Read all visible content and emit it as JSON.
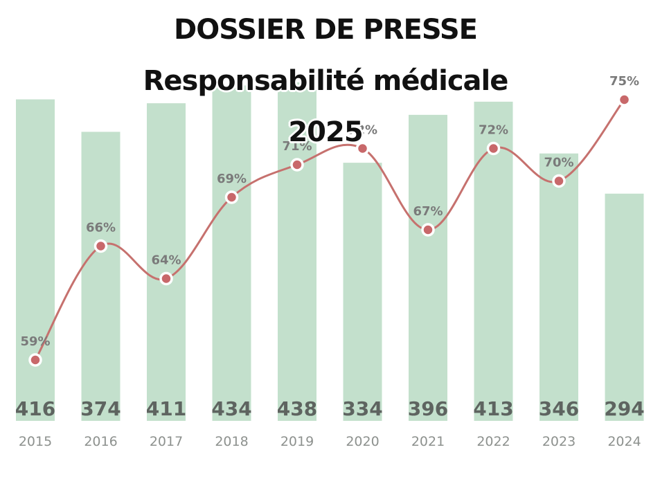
{
  "header": {
    "title_line1": "DOSSIER DE PRESSE",
    "title_line2": "Responsabilité médicale",
    "title_line3": "2025"
  },
  "colors": {
    "bar": "#c3e0cc",
    "line": "#c6716e",
    "point": "#c8686a",
    "bar_label": "#5e6460",
    "year_label": "#8d918e"
  },
  "chart_data": {
    "type": "bar",
    "title": "DOSSIER DE PRESSE Responsabilité médicale 2025",
    "categories": [
      "2015",
      "2016",
      "2017",
      "2018",
      "2019",
      "2020",
      "2021",
      "2022",
      "2023",
      "2024"
    ],
    "series": [
      {
        "type": "bar",
        "values": [
          416,
          374,
          411,
          434,
          438,
          334,
          396,
          413,
          346,
          294
        ]
      },
      {
        "type": "line",
        "unit": "%",
        "values": [
          59,
          66,
          64,
          69,
          71,
          72,
          67,
          72,
          70,
          75
        ]
      }
    ],
    "bar_value_labels": [
      "416",
      "374",
      "411",
      "434",
      "438",
      "334",
      "396",
      "413",
      "346",
      "294"
    ],
    "line_value_labels": [
      "59%",
      "66%",
      "64%",
      "69%",
      "71%",
      "72%",
      "67%",
      "72%",
      "70%",
      "75%"
    ],
    "grid": false,
    "legend": "none"
  }
}
